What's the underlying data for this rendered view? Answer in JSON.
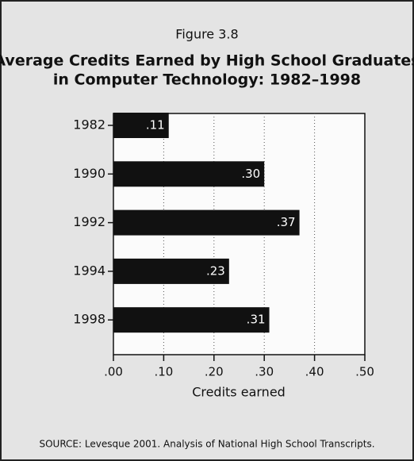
{
  "chart_data": {
    "type": "bar",
    "orientation": "horizontal",
    "figure_label": "Figure 3.8",
    "title": [
      "Average Credits Earned by High School Graduates",
      "in Computer Technology: 1982–1998"
    ],
    "categories": [
      "1982",
      "1990",
      "1992",
      "1994",
      "1998"
    ],
    "values": [
      0.11,
      0.3,
      0.37,
      0.23,
      0.31
    ],
    "value_labels": [
      ".11",
      ".30",
      ".37",
      ".23",
      ".31"
    ],
    "color": "#111111",
    "xlabel": "Credits earned",
    "xlim": [
      0,
      0.5
    ],
    "xticks": [
      {
        "value": 0,
        "label": ".00"
      },
      {
        "value": 0.1,
        "label": ".10"
      },
      {
        "value": 0.2,
        "label": ".20"
      },
      {
        "value": 0.3,
        "label": ".30"
      },
      {
        "value": 0.4,
        "label": ".40"
      },
      {
        "value": 0.5,
        "label": ".50"
      }
    ],
    "grid": true,
    "source": "SOURCE: Levesque 2001. Analysis of National High School Transcripts."
  }
}
